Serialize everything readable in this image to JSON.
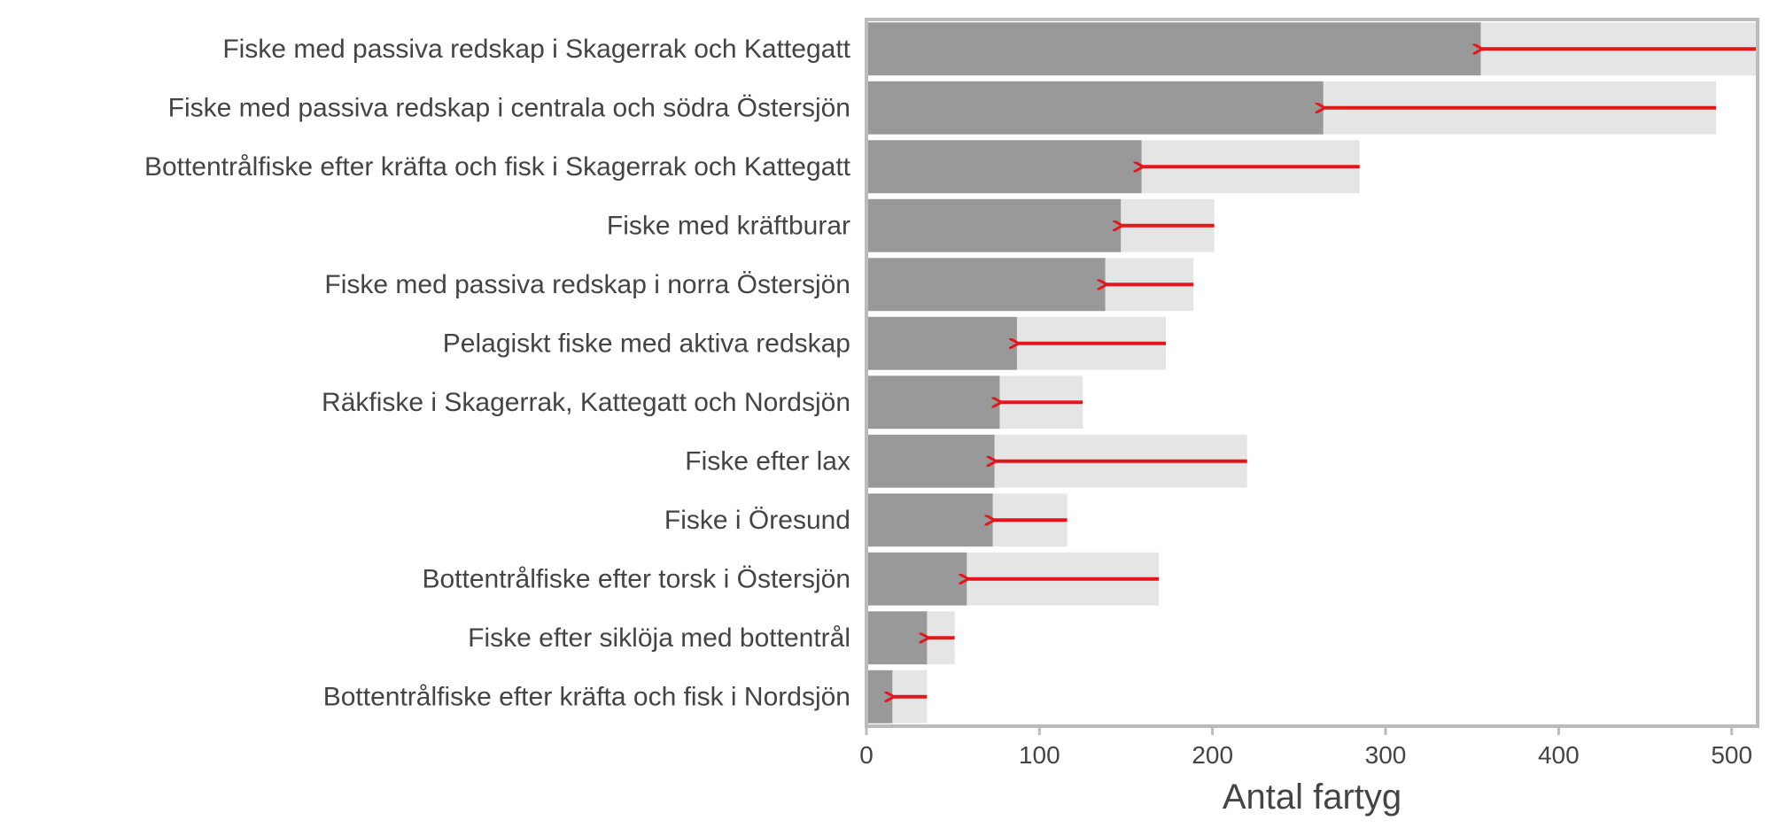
{
  "chart_data": {
    "type": "bar",
    "orientation": "horizontal",
    "xlabel": "Antal fartyg",
    "ylabel": "",
    "xlim": [
      0,
      515
    ],
    "xticks": [
      0,
      100,
      200,
      300,
      400,
      500
    ],
    "categories": [
      "Fiske med passiva redskap i Skagerrak och Kattegatt",
      "Fiske med passiva redskap i centrala och södra Östersjön",
      "Bottentrålfiske efter kräfta och fisk i Skagerrak och Kattegatt",
      "Fiske med kräftburar",
      "Fiske med passiva redskap i norra Östersjön",
      "Pelagiskt fiske med aktiva redskap",
      "Räkfiske i Skagerrak, Kattegatt och Nordsjön",
      "Fiske efter lax",
      "Fiske i Öresund",
      "Bottentrålfiske efter torsk i Östersjön",
      "Fiske efter siklöja med bottentrål",
      "Bottentrålfiske efter kräfta och fisk i Nordsjön"
    ],
    "series": [
      {
        "values": [
          515,
          491,
          285,
          201,
          189,
          173,
          125,
          220,
          116,
          169,
          51,
          35
        ]
      },
      {
        "values": [
          355,
          264,
          159,
          147,
          138,
          87,
          77,
          74,
          73,
          58,
          35,
          15
        ]
      }
    ],
    "colors": {
      "background_bar": "#e5e5e5",
      "foreground_bar": "#999999",
      "arrow": "#e3171b",
      "frame": "#bbbbbb",
      "text": "#444444"
    },
    "grid": false,
    "legend": "none"
  }
}
